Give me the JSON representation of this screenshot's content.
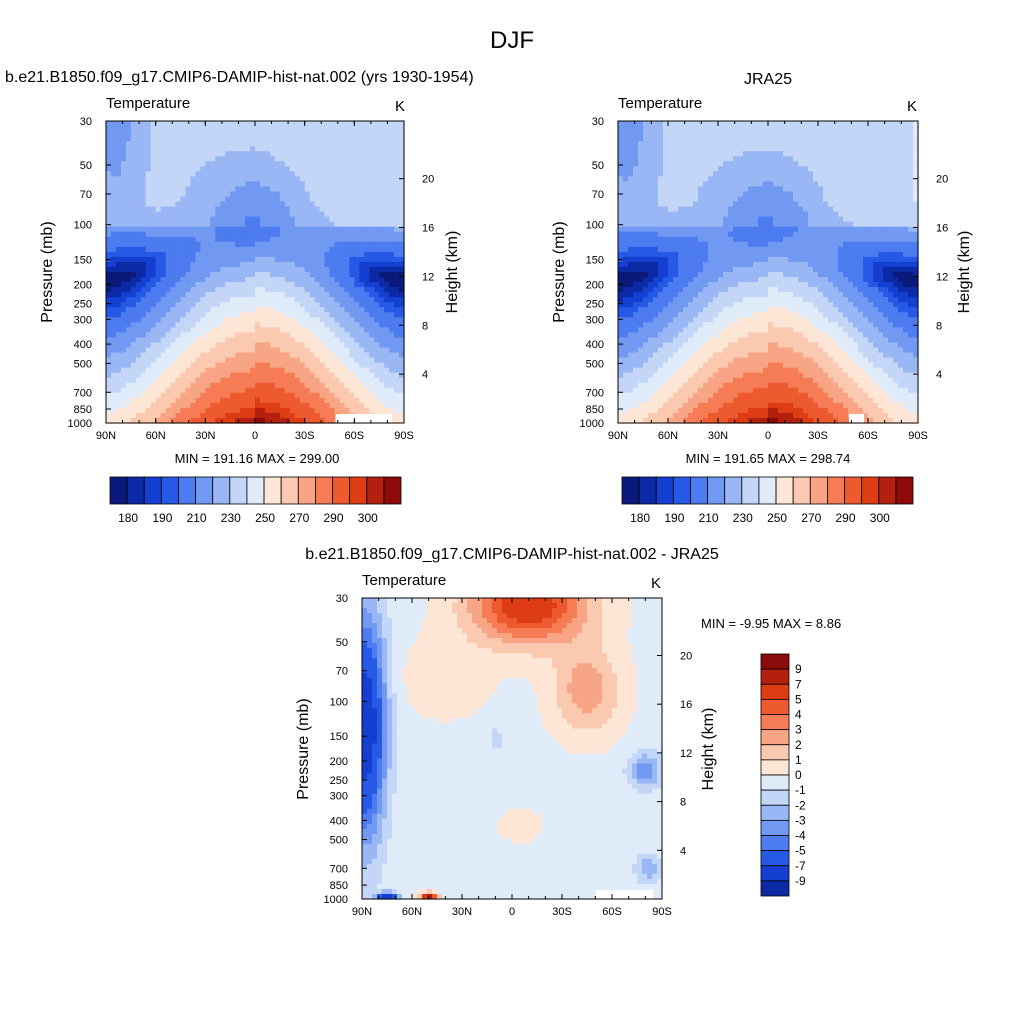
{
  "figure": {
    "title": "DJF"
  },
  "chart_data": [
    {
      "type": "heatmap",
      "panel_title": "b.e21.B1850.f09_g17.CMIP6-DAMIP-hist-nat.002 (yrs 1930-1954)",
      "variable": "Temperature",
      "units": "K",
      "stats": "MIN = 191.16  MAX = 299.00",
      "min": 191.16,
      "max": 299.0,
      "xlabel": "",
      "ylabel": "Pressure (mb)",
      "ylabel_right": "Height (km)",
      "x_ticks": [
        "90N",
        "60N",
        "30N",
        "0",
        "30S",
        "60S",
        "90S"
      ],
      "y_ticks": [
        "30",
        "50",
        "70",
        "100",
        "150",
        "200",
        "250",
        "300",
        "400",
        "500",
        "700",
        "850",
        "1000"
      ],
      "y_ticks_right": [
        "20",
        "16",
        "12",
        "8",
        "4"
      ],
      "y_log_scale": true,
      "ylim": [
        1000,
        30
      ],
      "xlim": [
        "90N",
        "90S"
      ],
      "colorbar_labels": [
        "180",
        "190",
        "210",
        "230",
        "250",
        "270",
        "290",
        "300"
      ],
      "colorbar_levels": [
        175,
        180,
        185,
        190,
        200,
        210,
        220,
        230,
        240,
        250,
        260,
        270,
        280,
        290,
        295,
        300
      ]
    },
    {
      "type": "heatmap",
      "panel_title": "JRA25",
      "variable": "Temperature",
      "units": "K",
      "stats": "MIN = 191.65  MAX = 298.74",
      "min": 191.65,
      "max": 298.74,
      "xlabel": "",
      "ylabel": "Pressure (mb)",
      "ylabel_right": "Height (km)",
      "x_ticks": [
        "90N",
        "60N",
        "30N",
        "0",
        "30S",
        "60S",
        "90S"
      ],
      "y_ticks": [
        "30",
        "50",
        "70",
        "100",
        "150",
        "200",
        "250",
        "300",
        "400",
        "500",
        "700",
        "850",
        "1000"
      ],
      "y_ticks_right": [
        "20",
        "16",
        "12",
        "8",
        "4"
      ],
      "y_log_scale": true,
      "ylim": [
        1000,
        30
      ],
      "xlim": [
        "90N",
        "90S"
      ],
      "colorbar_labels": [
        "180",
        "190",
        "210",
        "230",
        "250",
        "270",
        "290",
        "300"
      ],
      "colorbar_levels": [
        175,
        180,
        185,
        190,
        200,
        210,
        220,
        230,
        240,
        250,
        260,
        270,
        280,
        290,
        295,
        300
      ]
    },
    {
      "type": "heatmap",
      "panel_title": "b.e21.B1850.f09_g17.CMIP6-DAMIP-hist-nat.002 - JRA25",
      "variable": "Temperature",
      "units": "K",
      "stats": "MIN =  -9.95  MAX =   8.86",
      "min": -9.95,
      "max": 8.86,
      "xlabel": "",
      "ylabel": "Pressure (mb)",
      "ylabel_right": "Height (km)",
      "x_ticks": [
        "90N",
        "60N",
        "30N",
        "0",
        "30S",
        "60S",
        "90S"
      ],
      "y_ticks": [
        "30",
        "50",
        "70",
        "100",
        "150",
        "200",
        "250",
        "300",
        "400",
        "500",
        "700",
        "850",
        "1000"
      ],
      "y_ticks_right": [
        "20",
        "16",
        "12",
        "8",
        "4"
      ],
      "y_log_scale": true,
      "ylim": [
        1000,
        30
      ],
      "xlim": [
        "90N",
        "90S"
      ],
      "colorbar_labels": [
        "9",
        "7",
        "5",
        "4",
        "3",
        "2",
        "1",
        "0",
        "-1",
        "-2",
        "-3",
        "-4",
        "-5",
        "-7",
        "-9"
      ],
      "colorbar_levels": [
        9,
        7,
        5,
        4,
        3,
        2,
        1,
        0,
        -1,
        -2,
        -3,
        -4,
        -5,
        -7,
        -9
      ]
    }
  ],
  "colormap": [
    "#0a1a7a",
    "#0d2aa6",
    "#143fd1",
    "#2659e6",
    "#4d7bf0",
    "#7199f2",
    "#9ab7f5",
    "#c4d6f7",
    "#e0ebfa",
    "#fde6d6",
    "#fbc8b0",
    "#f8a585",
    "#f57c55",
    "#ee5a30",
    "#de3c15",
    "#b3200e",
    "#8b0a0a"
  ]
}
